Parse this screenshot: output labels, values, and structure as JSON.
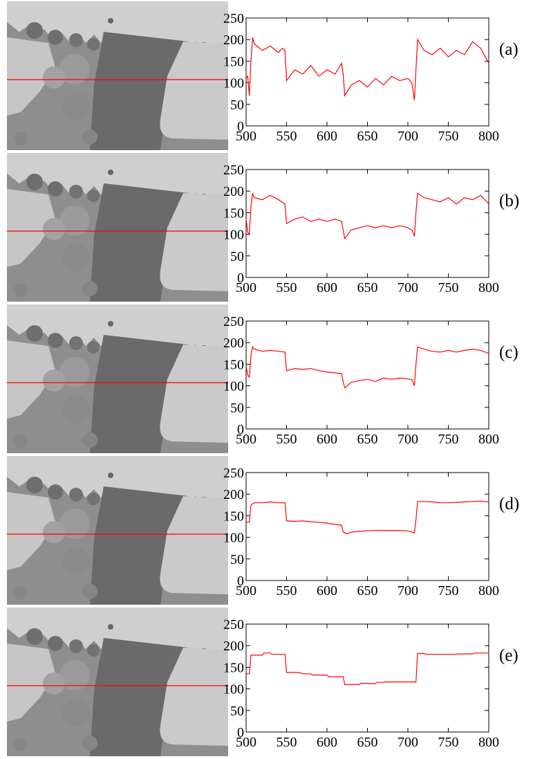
{
  "axes": {
    "xlim": [
      500,
      800
    ],
    "ylim": [
      0,
      250
    ],
    "xticks": [
      500,
      550,
      600,
      650,
      700,
      750,
      800
    ],
    "yticks": [
      0,
      50,
      100,
      150,
      200,
      250
    ],
    "line_color": "#ff0000"
  },
  "panels": [
    {
      "label": "(a)",
      "kind": "raw"
    },
    {
      "label": "(b)",
      "kind": "smooth1"
    },
    {
      "label": "(c)",
      "kind": "smooth2"
    },
    {
      "label": "(d)",
      "kind": "smooth3"
    },
    {
      "label": "(e)",
      "kind": "piecewise"
    }
  ],
  "chart_data": [
    {
      "type": "line",
      "label": "(a)",
      "xlim": [
        500,
        800
      ],
      "ylim": [
        0,
        250
      ],
      "grid": false,
      "x": [
        500,
        502,
        504,
        506,
        508,
        510,
        520,
        530,
        540,
        545,
        548,
        550,
        560,
        570,
        580,
        590,
        600,
        610,
        618,
        620,
        622,
        630,
        640,
        650,
        660,
        670,
        680,
        690,
        700,
        705,
        708,
        710,
        712,
        720,
        730,
        740,
        750,
        760,
        770,
        780,
        790,
        800
      ],
      "y": [
        110,
        115,
        70,
        150,
        205,
        190,
        175,
        185,
        170,
        180,
        175,
        105,
        130,
        120,
        140,
        115,
        130,
        120,
        145,
        120,
        70,
        95,
        105,
        90,
        110,
        95,
        115,
        105,
        110,
        100,
        60,
        130,
        200,
        175,
        165,
        180,
        160,
        175,
        165,
        195,
        180,
        145
      ]
    },
    {
      "type": "line",
      "label": "(b)",
      "xlim": [
        500,
        800
      ],
      "ylim": [
        0,
        250
      ],
      "grid": false,
      "x": [
        500,
        502,
        504,
        506,
        508,
        510,
        520,
        530,
        540,
        548,
        550,
        560,
        570,
        580,
        590,
        600,
        610,
        618,
        620,
        622,
        630,
        640,
        650,
        660,
        670,
        680,
        690,
        700,
        705,
        708,
        710,
        712,
        720,
        730,
        740,
        750,
        760,
        770,
        780,
        790,
        800
      ],
      "y": [
        135,
        105,
        100,
        165,
        195,
        185,
        180,
        190,
        180,
        170,
        125,
        135,
        140,
        130,
        135,
        130,
        135,
        130,
        110,
        90,
        110,
        115,
        120,
        115,
        120,
        115,
        120,
        115,
        110,
        95,
        150,
        195,
        185,
        180,
        175,
        185,
        170,
        185,
        180,
        190,
        170
      ]
    },
    {
      "type": "line",
      "label": "(c)",
      "xlim": [
        500,
        800
      ],
      "ylim": [
        0,
        250
      ],
      "grid": false,
      "x": [
        500,
        502,
        504,
        506,
        508,
        510,
        520,
        530,
        540,
        548,
        550,
        560,
        570,
        580,
        590,
        600,
        610,
        618,
        620,
        622,
        630,
        640,
        650,
        660,
        670,
        680,
        690,
        700,
        705,
        708,
        710,
        712,
        720,
        730,
        740,
        750,
        760,
        770,
        780,
        790,
        800
      ],
      "y": [
        145,
        125,
        120,
        170,
        190,
        185,
        180,
        182,
        180,
        178,
        135,
        140,
        138,
        140,
        135,
        132,
        130,
        128,
        110,
        95,
        108,
        112,
        115,
        110,
        118,
        115,
        118,
        116,
        114,
        100,
        150,
        190,
        185,
        180,
        178,
        182,
        178,
        182,
        185,
        182,
        175
      ]
    },
    {
      "type": "line",
      "label": "(d)",
      "xlim": [
        500,
        800
      ],
      "ylim": [
        0,
        250
      ],
      "grid": false,
      "x": [
        500,
        504,
        506,
        510,
        520,
        530,
        540,
        548,
        550,
        560,
        570,
        580,
        590,
        600,
        610,
        618,
        620,
        625,
        630,
        640,
        650,
        660,
        670,
        680,
        690,
        700,
        708,
        710,
        712,
        720,
        730,
        740,
        750,
        760,
        770,
        780,
        790,
        800
      ],
      "y": [
        135,
        135,
        175,
        180,
        180,
        182,
        180,
        180,
        138,
        137,
        138,
        136,
        135,
        133,
        130,
        128,
        112,
        108,
        112,
        114,
        115,
        116,
        116,
        116,
        116,
        115,
        110,
        140,
        183,
        183,
        182,
        180,
        180,
        181,
        182,
        183,
        184,
        182
      ]
    },
    {
      "type": "line",
      "label": "(e)",
      "xlim": [
        500,
        800
      ],
      "ylim": [
        0,
        250
      ],
      "grid": false,
      "x": [
        500,
        504,
        506,
        520,
        522,
        530,
        532,
        548,
        550,
        565,
        570,
        580,
        582,
        600,
        602,
        620,
        622,
        640,
        642,
        650,
        652,
        660,
        662,
        670,
        672,
        710,
        712,
        720,
        722,
        760,
        762,
        780,
        782,
        800
      ],
      "y": [
        135,
        135,
        178,
        178,
        183,
        183,
        180,
        180,
        138,
        138,
        135,
        135,
        132,
        132,
        128,
        128,
        110,
        110,
        113,
        113,
        112,
        112,
        115,
        115,
        116,
        116,
        182,
        182,
        180,
        180,
        181,
        181,
        183,
        183
      ]
    }
  ]
}
